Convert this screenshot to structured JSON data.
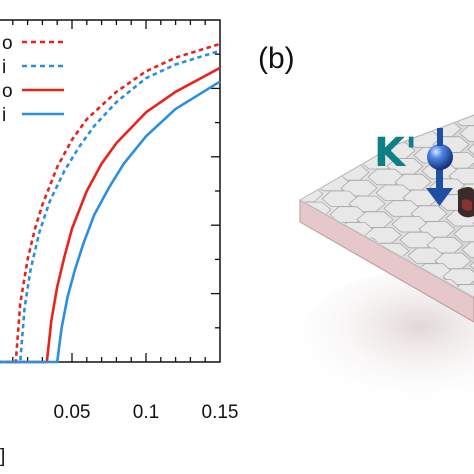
{
  "panel_b_label": "(b)",
  "kprime_label": "K'",
  "colors": {
    "red": "#e8231c",
    "blue": "#2a8fe0",
    "teal_text": "#0f7f86",
    "spin_blue": "#1f4fa3",
    "slab": "#e8c9cc",
    "hex": "#e7e7e7"
  },
  "icons": [
    "spin-up-ball-icon",
    "spin-down-arrow-icon",
    "graphene-lattice-icon"
  ],
  "chart_data": {
    "type": "line",
    "xlim": [
      0,
      0.15
    ],
    "ylim": [
      0,
      1
    ],
    "xticks": [
      "0.05",
      "0.1",
      "0.15"
    ],
    "xtick_values": [
      0.05,
      0.1,
      0.15
    ],
    "xlabel": "]",
    "ylabel": "",
    "grid": false,
    "legend_placement": "top-left",
    "series": [
      {
        "name": "o",
        "style": "dashed",
        "color": "#e8231c",
        "x": [
          0,
          0.012,
          0.015,
          0.02,
          0.025,
          0.03,
          0.04,
          0.05,
          0.06,
          0.08,
          0.1,
          0.12,
          0.15
        ],
        "y": [
          0,
          0,
          0.17,
          0.3,
          0.39,
          0.46,
          0.57,
          0.65,
          0.71,
          0.79,
          0.85,
          0.89,
          0.93
        ]
      },
      {
        "name": "i",
        "style": "dashed",
        "color": "#2a8fe0",
        "x": [
          0,
          0.015,
          0.018,
          0.022,
          0.028,
          0.035,
          0.045,
          0.055,
          0.065,
          0.08,
          0.1,
          0.12,
          0.15
        ],
        "y": [
          0,
          0,
          0.16,
          0.27,
          0.38,
          0.47,
          0.56,
          0.63,
          0.69,
          0.76,
          0.83,
          0.87,
          0.91
        ]
      },
      {
        "name": "o",
        "style": "solid",
        "color": "#e8231c",
        "x": [
          0,
          0.033,
          0.036,
          0.04,
          0.045,
          0.05,
          0.06,
          0.07,
          0.08,
          0.1,
          0.12,
          0.15
        ],
        "y": [
          0,
          0,
          0.12,
          0.22,
          0.31,
          0.39,
          0.5,
          0.58,
          0.64,
          0.73,
          0.79,
          0.86
        ]
      },
      {
        "name": "i",
        "style": "solid",
        "color": "#2a8fe0",
        "x": [
          0,
          0.04,
          0.043,
          0.047,
          0.052,
          0.058,
          0.065,
          0.075,
          0.085,
          0.1,
          0.12,
          0.15
        ],
        "y": [
          0,
          0,
          0.1,
          0.19,
          0.27,
          0.35,
          0.43,
          0.51,
          0.58,
          0.66,
          0.74,
          0.82
        ]
      }
    ]
  }
}
